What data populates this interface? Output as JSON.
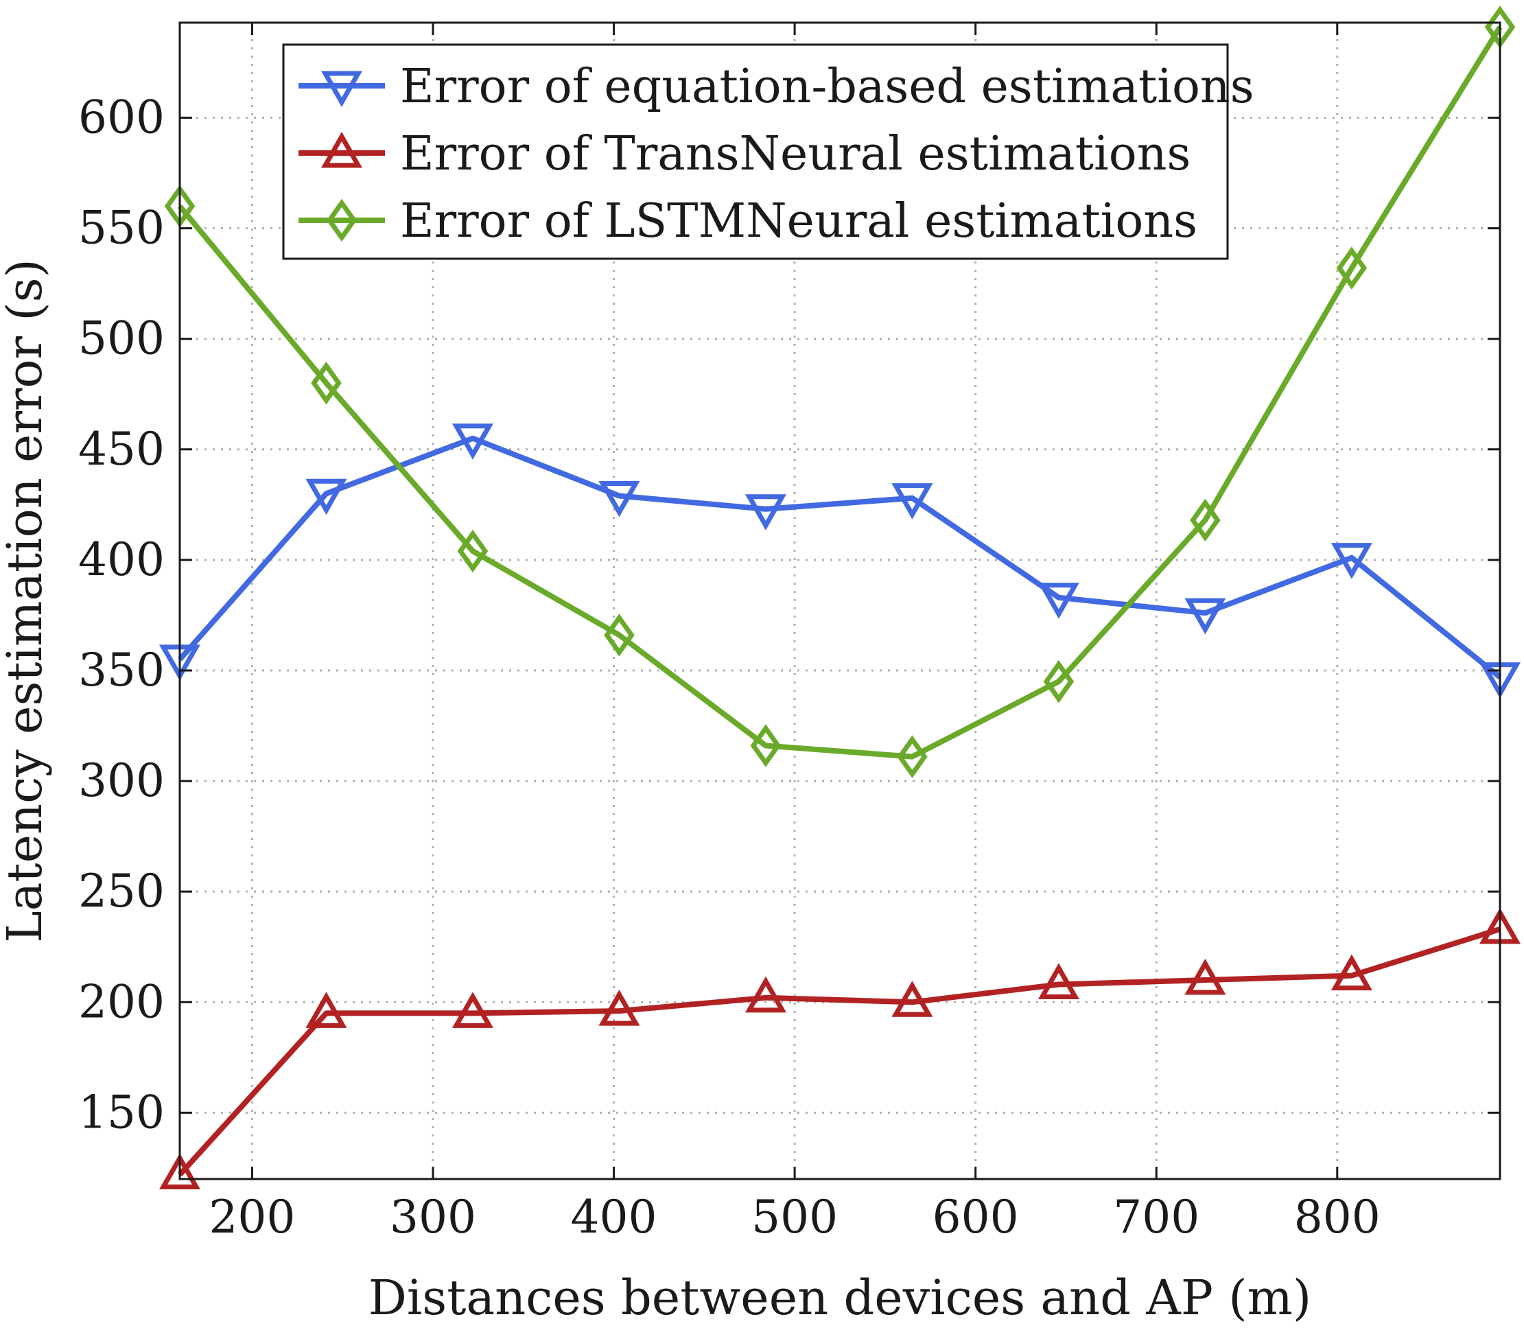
{
  "chart_data": {
    "type": "line",
    "title": "",
    "xlabel": "Distances between devices and AP (m)",
    "ylabel": "Latency estimation error (s)",
    "xlim": [
      160,
      890
    ],
    "ylim": [
      120,
      643
    ],
    "xticks": [
      200,
      300,
      400,
      500,
      600,
      700,
      800
    ],
    "yticks": [
      150,
      200,
      250,
      300,
      350,
      400,
      450,
      500,
      550,
      600
    ],
    "grid": true,
    "legend_position": "top-center",
    "x": [
      160,
      241,
      322,
      403,
      484,
      565,
      646,
      727,
      808,
      890
    ],
    "series": [
      {
        "name": "Error of equation-based estimations",
        "color": "#4169e1",
        "marker": "triangle-down",
        "values": [
          355,
          430,
          455,
          429,
          423,
          428,
          383,
          376,
          401,
          347
        ]
      },
      {
        "name": "Error of TransNeural estimations",
        "color": "#b22222",
        "marker": "triangle-up",
        "values": [
          122,
          195,
          195,
          196,
          202,
          200,
          208,
          210,
          212,
          233
        ]
      },
      {
        "name": "Error of LSTMNeural estimations",
        "color": "#6aaa2a",
        "marker": "diamond",
        "values": [
          560,
          480,
          404,
          366,
          316,
          311,
          345,
          418,
          532,
          641
        ]
      }
    ]
  }
}
